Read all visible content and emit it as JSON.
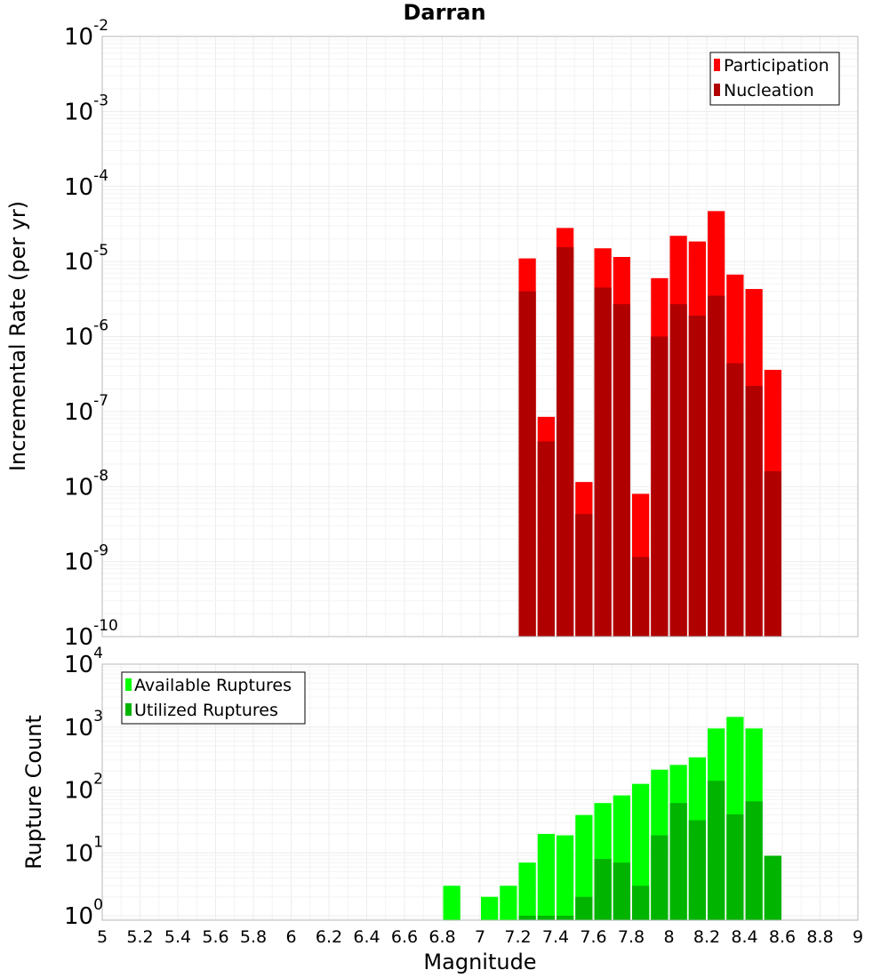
{
  "title": "Darran",
  "xlabel": "Magnitude",
  "colors": {
    "participation": "#ff0000",
    "nucleation": "#b00000",
    "available": "#00ff00",
    "utilized": "#00b400"
  },
  "chart_data": [
    {
      "type": "bar",
      "panel": "rates",
      "ylabel": "Incremental Rate (per yr)",
      "yscale": "log",
      "ylim": [
        1e-10,
        0.01
      ],
      "ytick_exponents": [
        -10,
        -9,
        -8,
        -7,
        -6,
        -5,
        -4,
        -3,
        -2
      ],
      "xlim": [
        5,
        9
      ],
      "bin_width": 0.1,
      "x": [
        7.25,
        7.35,
        7.45,
        7.55,
        7.65,
        7.75,
        7.85,
        7.95,
        8.05,
        8.15,
        8.25,
        8.35,
        8.45,
        8.55
      ],
      "legend_position": "top-right",
      "series": [
        {
          "name": "Participation",
          "color": "#ff0000",
          "values": [
            1.1e-05,
            8.5e-08,
            2.8e-05,
            1.15e-08,
            1.5e-05,
            1.15e-05,
            8e-09,
            6e-06,
            2.2e-05,
            1.85e-05,
            4.7e-05,
            6.7e-06,
            4.3e-06,
            3.6e-07
          ]
        },
        {
          "name": "Nucleation",
          "color": "#b00000",
          "values": [
            4e-06,
            4e-08,
            1.55e-05,
            4.3e-09,
            4.5e-06,
            2.7e-06,
            1.15e-09,
            1e-06,
            2.7e-06,
            1.9e-06,
            3.5e-06,
            4.4e-07,
            2.2e-07,
            1.6e-08
          ]
        }
      ]
    },
    {
      "type": "bar",
      "panel": "counts",
      "ylabel": "Rupture Count",
      "yscale": "log",
      "ylim": [
        0.85,
        10000
      ],
      "ytick_exponents": [
        0,
        1,
        2,
        3,
        4
      ],
      "xlim": [
        5,
        9
      ],
      "bin_width": 0.1,
      "x": [
        6.85,
        7.05,
        7.15,
        7.25,
        7.35,
        7.45,
        7.55,
        7.65,
        7.75,
        7.85,
        7.95,
        8.05,
        8.15,
        8.25,
        8.35,
        8.45,
        8.55
      ],
      "legend_position": "top-left",
      "series": [
        {
          "name": "Available Ruptures",
          "color": "#00ff00",
          "values": [
            3,
            2,
            3,
            7,
            20,
            19,
            40,
            62,
            82,
            125,
            210,
            250,
            330,
            950,
            1450,
            950,
            9
          ]
        },
        {
          "name": "Utilized Ruptures",
          "color": "#00b400",
          "values": [
            0,
            0,
            0,
            1,
            1,
            1,
            2,
            8,
            7,
            3,
            19,
            62,
            33,
            140,
            41,
            66,
            9
          ]
        }
      ]
    }
  ],
  "xtick_labels": [
    "5",
    "5.2",
    "5.4",
    "5.6",
    "5.8",
    "6",
    "6.2",
    "6.4",
    "6.6",
    "6.8",
    "7",
    "7.2",
    "7.4",
    "7.6",
    "7.8",
    "8",
    "8.2",
    "8.4",
    "8.6",
    "8.8",
    "9"
  ]
}
